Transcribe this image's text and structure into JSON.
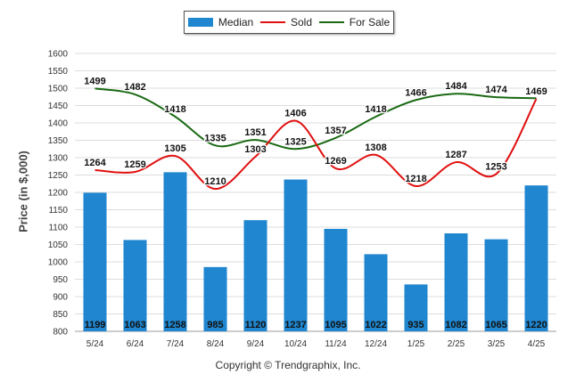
{
  "legend": {
    "median_label": "Median",
    "sold_label": "Sold",
    "forsale_label": "For Sale"
  },
  "footer": "Copyright © Trendgraphix, Inc.",
  "colors": {
    "median": "#1f86cf",
    "sold": "#e01010",
    "forsale": "#1a6a14",
    "grid": "#dddddd"
  },
  "chart_data": {
    "type": "bar",
    "categories": [
      "5/24",
      "6/24",
      "7/24",
      "8/24",
      "9/24",
      "10/24",
      "11/24",
      "12/24",
      "1/25",
      "2/25",
      "3/25",
      "4/25"
    ],
    "series": [
      {
        "name": "Median",
        "type": "bar",
        "values": [
          1199,
          1063,
          1258,
          985,
          1120,
          1237,
          1095,
          1022,
          935,
          1082,
          1065,
          1220
        ]
      },
      {
        "name": "Sold",
        "type": "line",
        "values": [
          1264,
          1259,
          1305,
          1210,
          1303,
          1406,
          1269,
          1308,
          1218,
          1287,
          1253,
          1469
        ]
      },
      {
        "name": "For Sale",
        "type": "line",
        "values": [
          1499,
          1482,
          1418,
          1335,
          1351,
          1325,
          1357,
          1418,
          1466,
          1484,
          1474,
          1471
        ]
      }
    ],
    "yticks": [
      800,
      850,
      900,
      950,
      1000,
      1050,
      1100,
      1150,
      1200,
      1250,
      1300,
      1350,
      1400,
      1450,
      1500,
      1550,
      1600
    ],
    "ylabel": "Price (in $,000)",
    "xlabel": "",
    "ylim": [
      800,
      1600
    ],
    "grid": true,
    "legend_position": "top"
  }
}
